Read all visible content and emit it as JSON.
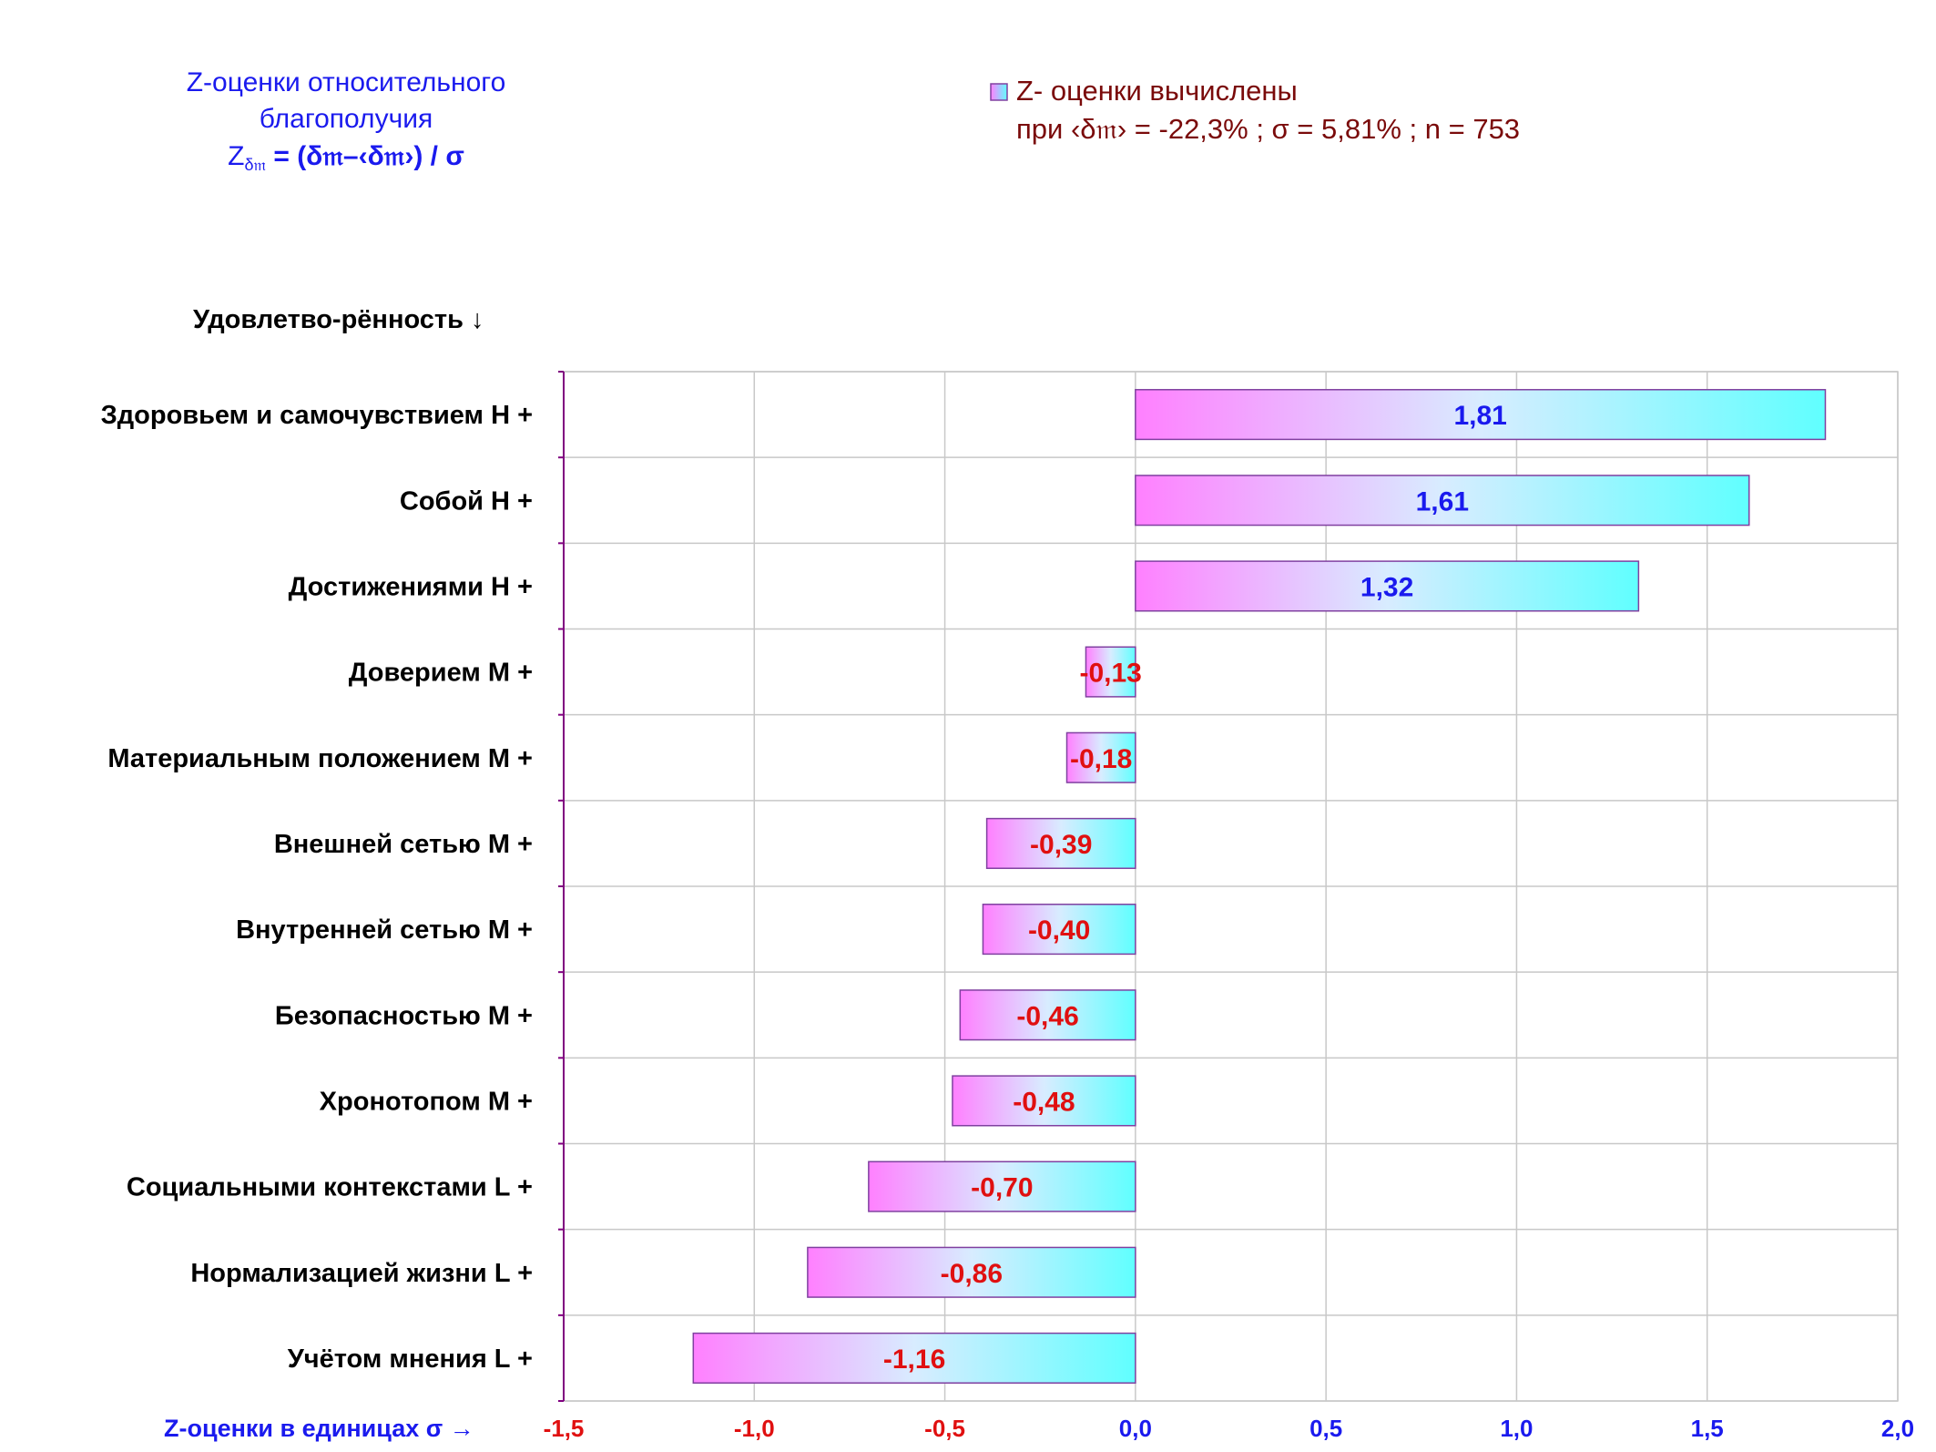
{
  "header": {
    "title_line1": "Z-оценки  относительного",
    "title_line2": "благополучия",
    "formula_z": "Z",
    "formula_sub": "δ𝔪",
    "formula_rest": " = (δ𝔪–‹δ𝔪›) / σ"
  },
  "legend": {
    "line1": "Z- оценки вычислены",
    "line2": "при ‹δ𝔪› = -22,3% ; σ = 5,81% ; n = 753"
  },
  "chart_data": {
    "type": "bar",
    "orientation": "horizontal",
    "ylabel": "Удовлетво-рённость ↓",
    "xlabel": "Z-оценки в единицах σ →",
    "xlim": [
      -1.5,
      2.0
    ],
    "xticks": [
      "-1,5",
      "-1,0",
      "-0,5",
      "0,0",
      "0,5",
      "1,0",
      "1,5",
      "2,0"
    ],
    "xtick_values": [
      -1.5,
      -1.0,
      -0.5,
      0.0,
      0.5,
      1.0,
      1.5,
      2.0
    ],
    "grid": true,
    "legend_position": "top-right",
    "categories": [
      "Здоровьем и самочувствием  Н +",
      "Собой  Н +",
      "Достижениями  Н +",
      "Доверием  М +",
      "Материальным положением  М +",
      "Внешней сетью  М +",
      "Внутренней сетью  М +",
      "Безопасностью  М +",
      "Хронотопом  М +",
      "Социальными контекстами  L +",
      "Нормализацией жизни  L +",
      "Учётом мнения  L +"
    ],
    "values": [
      1.81,
      1.61,
      1.32,
      -0.13,
      -0.18,
      -0.39,
      -0.4,
      -0.46,
      -0.48,
      -0.7,
      -0.86,
      -1.16
    ],
    "value_labels": [
      "1,81",
      "1,61",
      "1,32",
      "-0,13",
      "-0,18",
      "-0,39",
      "-0,40",
      "-0,46",
      "-0,48",
      "-0,70",
      "-0,86",
      "-1,16"
    ],
    "colors": {
      "positive_label": "#1a1aee",
      "negative_label": "#e01010",
      "bar_start": "#ff80ff",
      "bar_end": "#60ffff",
      "bar_border": "#8040a0",
      "grid": "#c8c8c8",
      "axis": "#800080",
      "tick_negative": "#e01010",
      "tick_positive": "#1a1aee"
    }
  }
}
